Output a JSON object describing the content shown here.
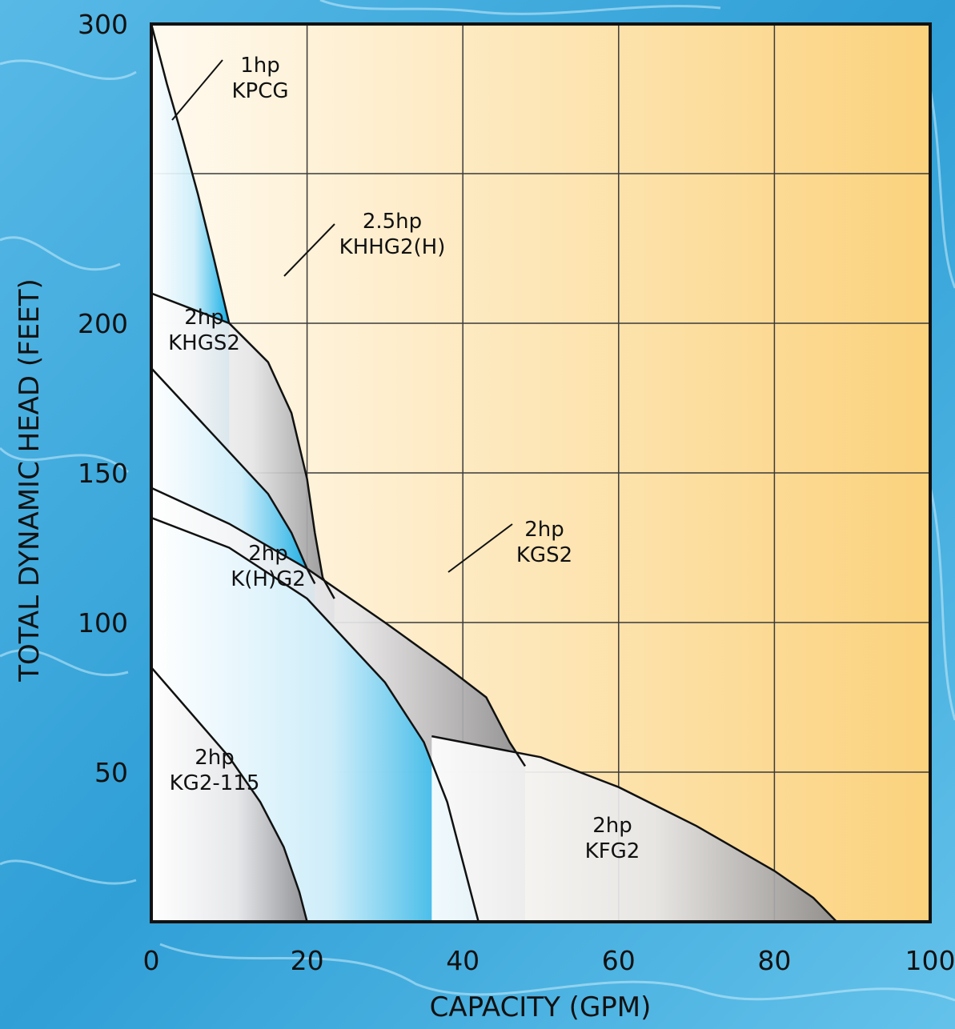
{
  "chart_data": {
    "type": "area",
    "title": "",
    "xlabel": "CAPACITY (GPM)",
    "ylabel": "TOTAL DYNAMIC HEAD (FEET)",
    "xlim": [
      0,
      100
    ],
    "ylim": [
      0,
      300
    ],
    "x_ticks": [
      "0",
      "20",
      "40",
      "60",
      "80",
      "100"
    ],
    "y_ticks": [
      "50",
      "100",
      "150",
      "200",
      "300"
    ],
    "grid": true,
    "colors": {
      "background_water": "#3fa6d8",
      "plot_light": "#fffaf0",
      "plot_dark": "#fbd27d",
      "grid": "#3a3a3a",
      "curve": "#111111",
      "blue_fill": "#00a8e6",
      "gray_fill": "#8a8a8e"
    },
    "series": [
      {
        "model": "KPCG",
        "hp": "1hp",
        "shade": "blue",
        "x": [
          0,
          2,
          4,
          6,
          8,
          10
        ],
        "y": [
          300,
          280,
          262,
          243,
          222,
          200
        ]
      },
      {
        "model": "KHHG2(H)",
        "hp": "2.5hp",
        "shade": "gray",
        "x": [
          0,
          5,
          10,
          15,
          18,
          20,
          21,
          22,
          23.5
        ],
        "y": [
          210,
          205,
          200,
          187,
          170,
          148,
          130,
          115,
          108
        ]
      },
      {
        "model": "KHGS2",
        "hp": "2hp",
        "shade": "blue",
        "x": [
          0,
          5,
          10,
          15,
          18,
          20,
          21
        ],
        "y": [
          185,
          171,
          157,
          143,
          130,
          118,
          113
        ]
      },
      {
        "model": "KGS2",
        "hp": "2hp",
        "shade": "gray",
        "x": [
          0,
          10,
          20,
          30,
          38,
          43,
          46,
          48
        ],
        "y": [
          145,
          133,
          118,
          100,
          85,
          75,
          60,
          52
        ]
      },
      {
        "model": "K(H)G2",
        "hp": "2hp",
        "shade": "blue",
        "x": [
          0,
          10,
          20,
          30,
          35,
          38,
          40,
          42
        ],
        "y": [
          135,
          125,
          108,
          80,
          60,
          40,
          20,
          0
        ]
      },
      {
        "model": "KFG2",
        "hp": "2hp",
        "shade": "gray",
        "x": [
          36,
          50,
          60,
          70,
          80,
          85,
          88
        ],
        "y": [
          62,
          55,
          45,
          32,
          17,
          8,
          0
        ]
      },
      {
        "model": "KG2-115",
        "hp": "2hp",
        "shade": "gray",
        "x": [
          0,
          5,
          10,
          14,
          17,
          19,
          20
        ],
        "y": [
          85,
          70,
          55,
          40,
          25,
          10,
          0
        ]
      }
    ],
    "labels": [
      {
        "line1": "1hp",
        "line2": "KPCG"
      },
      {
        "line1": "2.5hp",
        "line2": "KHHG2(H)"
      },
      {
        "line1": "2hp",
        "line2": "KHGS2"
      },
      {
        "line1": "2hp",
        "line2": "KGS2"
      },
      {
        "line1": "2hp",
        "line2": "K(H)G2"
      },
      {
        "line1": "2hp",
        "line2": "KFG2"
      },
      {
        "line1": "2hp",
        "line2": "KG2-115"
      }
    ]
  }
}
